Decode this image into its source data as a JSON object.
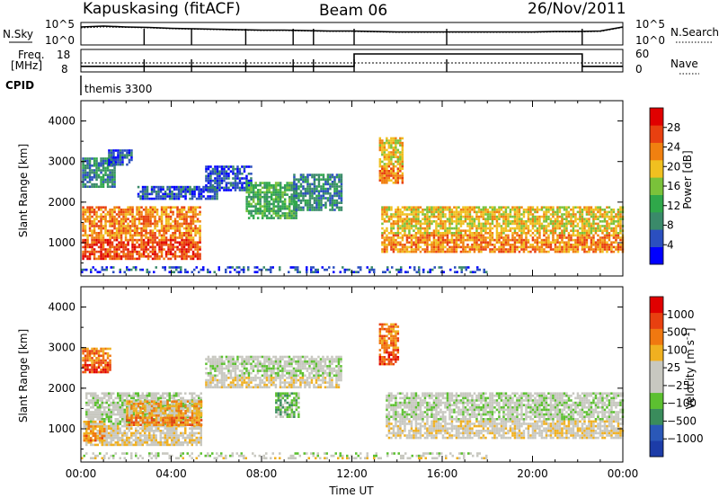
{
  "header": {
    "station": "Kapuskasing (fitACF)",
    "beam": "Beam 06",
    "date": "26/Nov/2011"
  },
  "colors": {
    "power_scale": [
      "#0000ff",
      "#2b4fbf",
      "#3a8a6a",
      "#2fa84a",
      "#7ac23a",
      "#f0c020",
      "#f08010",
      "#e84010",
      "#e00000"
    ],
    "velocity_scale": [
      "#1c3ca8",
      "#2a58b8",
      "#3a8c5c",
      "#5cc030",
      "#c8c8c0",
      "#c8c8c0",
      "#f0b020",
      "#f07810",
      "#e84010",
      "#e00000"
    ],
    "ground_scatter": "#c8c8c0"
  },
  "chart_data": [
    {
      "type": "line",
      "panel": "N.Sky / N.Search",
      "left_label": "N.Sky",
      "right_label": "N.Search",
      "left_ticks": [
        "10^5",
        "10^0"
      ],
      "right_ticks": [
        "10^5",
        "10^0"
      ],
      "series_solid_log10": [
        4.0,
        4.2,
        4.0,
        3.9,
        3.7,
        3.6,
        3.5,
        3.4,
        3.3,
        3.3,
        3.2,
        3.1,
        3.1,
        3.0,
        2.9,
        2.9,
        2.9,
        2.9,
        2.9,
        2.9,
        2.9,
        3.0,
        3.0,
        3.1,
        4.0
      ],
      "series_dotted_log10": [
        3.8,
        4.0,
        3.9,
        3.8,
        3.6,
        3.5,
        3.4,
        3.3,
        3.2,
        3.2,
        3.1,
        3.0,
        3.0,
        2.9,
        2.8,
        2.8,
        2.8,
        2.8,
        2.8,
        2.8,
        2.8,
        2.9,
        2.9,
        3.0,
        3.9
      ]
    },
    {
      "type": "line",
      "panel": "Freq / Nave",
      "left_label_lines": [
        "Freq.",
        "[MHz]"
      ],
      "right_label": "Nave",
      "left_ticks": [
        "18",
        "8"
      ],
      "right_ticks": [
        "60",
        "0"
      ],
      "freq_steps": [
        {
          "from": 0,
          "to": 12.1,
          "mhz": 10.5
        },
        {
          "from": 12.1,
          "to": 22.2,
          "mhz": 16.0
        },
        {
          "from": 22.2,
          "to": 24,
          "mhz": 10.5
        }
      ],
      "nave_level": 24
    },
    {
      "type": "table",
      "panel": "CPID",
      "label": "CPID",
      "program": "themis 3300"
    },
    {
      "type": "heatmap",
      "panel": "Power",
      "ylabel": "Slant Range [km]",
      "colorbar_label": "Power [dB]",
      "colorbar_ticks": [
        "28",
        "24",
        "20",
        "16",
        "12",
        "8",
        "4"
      ],
      "ylim": [
        180,
        4500
      ],
      "yticks": [
        "4000",
        "3000",
        "2000",
        "1000"
      ],
      "blobs": [
        {
          "t0": 0.05,
          "t1": 5.3,
          "r0": 600,
          "r1": 1900,
          "level": 6
        },
        {
          "t0": 0.05,
          "t1": 1.5,
          "r0": 2400,
          "r1": 3100,
          "level": 2
        },
        {
          "t0": 1.2,
          "t1": 2.2,
          "r0": 2900,
          "r1": 3300,
          "level": 1
        },
        {
          "t0": 2.5,
          "t1": 6.0,
          "r0": 2100,
          "r1": 2400,
          "level": 1
        },
        {
          "t0": 5.5,
          "t1": 7.5,
          "r0": 2300,
          "r1": 2900,
          "level": 1
        },
        {
          "t0": 7.3,
          "t1": 9.5,
          "r0": 1600,
          "r1": 2500,
          "level": 3
        },
        {
          "t0": 9.4,
          "t1": 11.5,
          "r0": 1800,
          "r1": 2700,
          "level": 2
        },
        {
          "t0": 13.2,
          "t1": 14.2,
          "r0": 2500,
          "r1": 3600,
          "level": 5
        },
        {
          "t0": 13.3,
          "t1": 24,
          "r0": 800,
          "r1": 1900,
          "level": 5
        },
        {
          "t0": 0.0,
          "t1": 18.0,
          "r0": 250,
          "r1": 420,
          "level": 1
        }
      ]
    },
    {
      "type": "heatmap",
      "panel": "Velocity",
      "ylabel": "Slant Range [km]",
      "colorbar_label": "Velocity [m s",
      "colorbar_exponent": "-1",
      "colorbar_label_end": "]",
      "colorbar_ticks": [
        "1000",
        "500",
        "100",
        "25",
        "−25",
        "−100",
        "−500",
        "−1000"
      ],
      "ylim": [
        180,
        4500
      ],
      "yticks": [
        "4000",
        "3000",
        "2000",
        "1000"
      ],
      "blobs": [
        {
          "t0": 0.2,
          "t1": 5.3,
          "r0": 600,
          "r1": 1900,
          "level": 4
        },
        {
          "t0": 2.0,
          "t1": 5.3,
          "r0": 1100,
          "r1": 1700,
          "level": 6
        },
        {
          "t0": 0.1,
          "t1": 1.0,
          "r0": 700,
          "r1": 1200,
          "level": 6
        },
        {
          "t0": 0.05,
          "t1": 1.3,
          "r0": 2400,
          "r1": 3000,
          "level": 7
        },
        {
          "t0": 5.5,
          "t1": 11.5,
          "r0": 2000,
          "r1": 2800,
          "level": 4
        },
        {
          "t0": 8.6,
          "t1": 9.6,
          "r0": 1300,
          "r1": 1900,
          "level": 3
        },
        {
          "t0": 13.2,
          "t1": 14.0,
          "r0": 2600,
          "r1": 3600,
          "level": 7
        },
        {
          "t0": 13.5,
          "t1": 24,
          "r0": 800,
          "r1": 1900,
          "level": 4
        },
        {
          "t0": 0.0,
          "t1": 18.0,
          "r0": 250,
          "r1": 420,
          "level": 4
        }
      ]
    },
    {
      "type": "axis",
      "xlabel": "Time UT",
      "xlim": [
        0,
        24
      ],
      "xticks": [
        "00:00",
        "04:00",
        "08:00",
        "12:00",
        "16:00",
        "20:00",
        "00:00"
      ]
    }
  ]
}
